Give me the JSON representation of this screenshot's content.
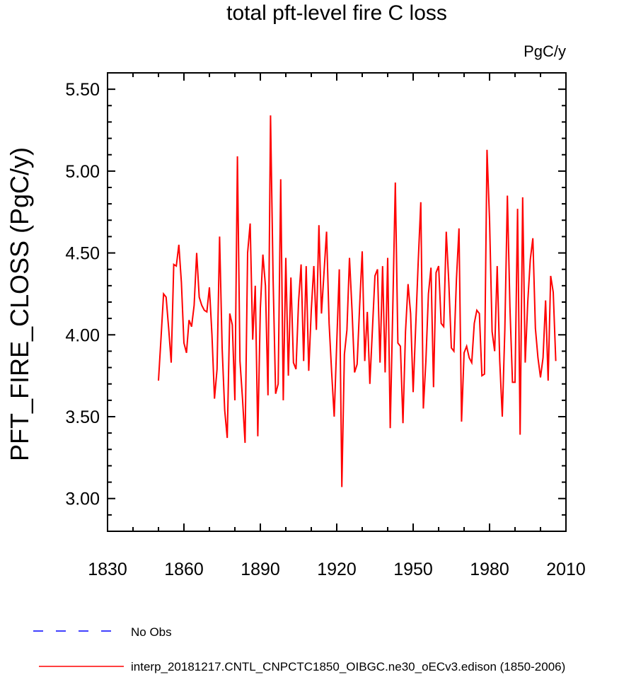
{
  "chart_data": {
    "type": "line",
    "title": "total pft-level fire C loss",
    "units": "PgC/y",
    "xlabel": "",
    "ylabel": "PFT_FIRE_CLOSS  (PgC/y)",
    "xlim": [
      1830,
      2010
    ],
    "ylim": [
      2.8,
      5.6
    ],
    "xticks": [
      1830,
      1860,
      1890,
      1920,
      1950,
      1980,
      2010
    ],
    "xtick_labels": [
      "1830",
      "1860",
      "1890",
      "1920",
      "1950",
      "1980",
      "2010"
    ],
    "xminor_step": 10,
    "yticks": [
      3.0,
      3.5,
      4.0,
      4.5,
      5.0,
      5.5
    ],
    "ytick_labels": [
      "3.00",
      "3.50",
      "4.00",
      "4.50",
      "5.00",
      "5.50"
    ],
    "yminor_step": 0.1,
    "grid": false,
    "legend_position": "bottom-left",
    "series": [
      {
        "name": "No Obs",
        "color": "#0000ff",
        "style": "dashed",
        "x": [],
        "values": []
      },
      {
        "name": "interp_20181217.CNTL_CNPCTC1850_OIBGC.ne30_oECv3.edison (1850-2006)",
        "color": "#ff0000",
        "style": "solid",
        "x_start": 1850,
        "x_step": 1,
        "values": [
          3.72,
          3.98,
          4.25,
          4.23,
          4.04,
          3.83,
          4.43,
          4.42,
          4.55,
          4.32,
          3.95,
          3.89,
          4.09,
          4.05,
          4.18,
          4.5,
          4.23,
          4.18,
          4.15,
          4.14,
          4.29,
          4.0,
          3.61,
          3.79,
          4.6,
          3.92,
          3.54,
          3.37,
          4.13,
          4.06,
          3.6,
          5.09,
          3.84,
          3.61,
          3.34,
          4.5,
          4.68,
          3.97,
          4.3,
          3.38,
          4.16,
          4.49,
          4.3,
          3.63,
          5.34,
          4.35,
          3.64,
          3.7,
          4.95,
          3.6,
          4.47,
          3.75,
          4.35,
          3.83,
          3.79,
          4.2,
          4.43,
          3.84,
          4.42,
          3.78,
          4.15,
          4.42,
          4.03,
          4.67,
          4.13,
          4.38,
          4.63,
          4.07,
          3.77,
          3.5,
          3.95,
          4.4,
          3.07,
          3.88,
          4.03,
          4.47,
          4.15,
          3.77,
          3.82,
          4.18,
          4.51,
          3.84,
          4.14,
          3.7,
          4.03,
          4.36,
          4.4,
          3.83,
          4.42,
          3.77,
          4.47,
          3.43,
          4.16,
          4.93,
          3.95,
          3.93,
          3.46,
          4.02,
          4.31,
          4.13,
          3.65,
          4.05,
          4.45,
          4.81,
          3.55,
          3.84,
          4.25,
          4.41,
          3.68,
          4.38,
          4.42,
          4.07,
          4.05,
          4.63,
          4.32,
          3.92,
          3.9,
          4.34,
          4.65,
          3.47,
          3.89,
          3.93,
          3.86,
          3.83,
          4.07,
          4.15,
          4.13,
          3.75,
          3.76,
          5.13,
          4.7,
          4.02,
          3.9,
          4.42,
          3.84,
          3.5,
          4.03,
          4.85,
          4.17,
          3.71,
          3.71,
          4.77,
          3.39,
          4.84,
          3.83,
          4.2,
          4.46,
          4.59,
          4.04,
          3.86,
          3.74,
          3.86,
          4.21,
          3.72,
          4.36,
          4.26,
          3.84
        ]
      }
    ]
  }
}
